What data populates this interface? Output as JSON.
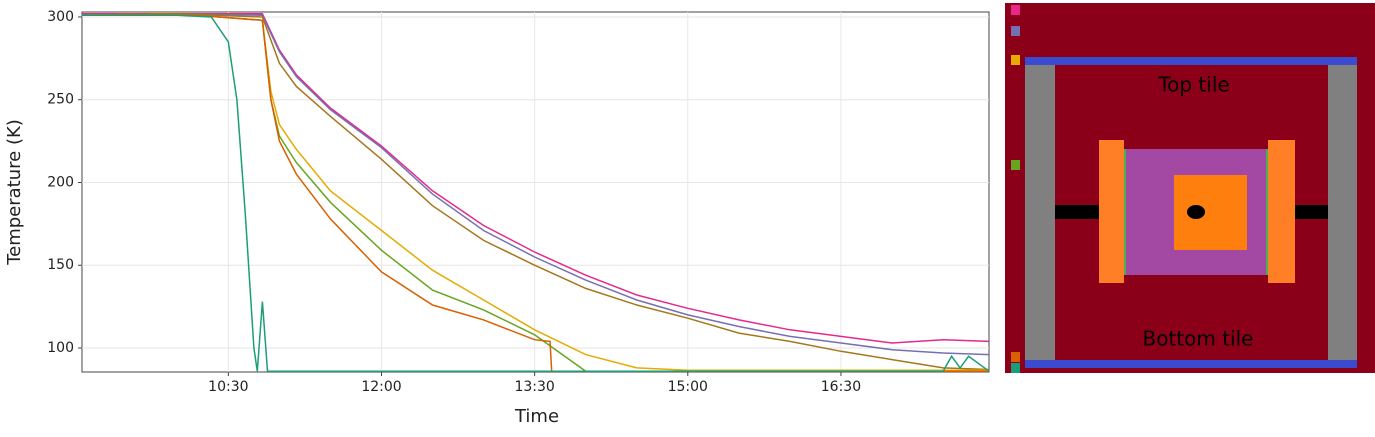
{
  "chart_data": {
    "type": "line",
    "x_label": "Time",
    "y_label": "Temperature (K)",
    "xlim": [
      544,
      1077
    ],
    "ylim": [
      85.5,
      303
    ],
    "xticks": [
      {
        "value": 630,
        "label": "10:30"
      },
      {
        "value": 720,
        "label": "12:00"
      },
      {
        "value": 810,
        "label": "13:30"
      },
      {
        "value": 900,
        "label": "15:00"
      },
      {
        "value": 990,
        "label": "16:30"
      }
    ],
    "yticks": [
      100,
      150,
      200,
      250,
      300
    ],
    "grid": true,
    "series": [
      {
        "color": "#e7298a",
        "x": [
          544,
          600,
          650,
          660,
          670,
          690,
          720,
          750,
          780,
          810,
          840,
          870,
          900,
          930,
          960,
          990,
          1020,
          1050,
          1077
        ],
        "values": [
          302,
          302,
          302,
          280,
          265,
          245,
          222,
          195,
          174,
          158,
          144,
          132,
          124,
          117,
          111,
          107,
          103,
          105,
          104
        ]
      },
      {
        "color": "#7570b3",
        "x": [
          544,
          600,
          650,
          660,
          670,
          690,
          720,
          750,
          780,
          810,
          840,
          870,
          900,
          930,
          960,
          990,
          1020,
          1050,
          1077
        ],
        "values": [
          301,
          302,
          301,
          279,
          264,
          244,
          221,
          193,
          171,
          155,
          141,
          129,
          120,
          113,
          107,
          103,
          99,
          97,
          96
        ]
      },
      {
        "color": "#a6761d",
        "x": [
          544,
          600,
          650,
          660,
          670,
          690,
          720,
          750,
          780,
          810,
          840,
          870,
          900,
          930,
          960,
          990,
          1020,
          1050,
          1077
        ],
        "values": [
          301,
          302,
          300,
          272,
          258,
          240,
          214,
          186,
          165,
          150,
          136,
          126,
          118,
          109,
          104,
          98,
          93,
          88,
          87
        ]
      },
      {
        "color": "#e6ab02",
        "x": [
          544,
          600,
          650,
          655,
          660,
          670,
          690,
          720,
          750,
          780,
          810,
          840,
          870,
          900,
          960,
          1020,
          1077
        ],
        "values": [
          301,
          302,
          298,
          255,
          235,
          220,
          195,
          171,
          147,
          129,
          111,
          96,
          88,
          86.5,
          86.5,
          86.5,
          86.5
        ]
      },
      {
        "color": "#66a61e",
        "x": [
          544,
          600,
          650,
          655,
          660,
          670,
          690,
          720,
          750,
          780,
          810,
          840,
          900,
          960,
          1020,
          1077
        ],
        "values": [
          301,
          302,
          298,
          250,
          228,
          212,
          188,
          159,
          135,
          123,
          108,
          86,
          86,
          86,
          86,
          86
        ]
      },
      {
        "color": "#d95f02",
        "x": [
          544,
          600,
          650,
          655,
          660,
          670,
          690,
          720,
          750,
          780,
          810,
          819,
          820,
          900,
          960,
          1020,
          1077
        ],
        "values": [
          301,
          302,
          298,
          250,
          225,
          205,
          178,
          146,
          126,
          117,
          105,
          104,
          86,
          86,
          86,
          86,
          86
        ]
      },
      {
        "color": "#1b9e77",
        "x": [
          544,
          600,
          620,
          630,
          635,
          640,
          645,
          647,
          650,
          653,
          660,
          720,
          810,
          900,
          990,
          1050,
          1055,
          1060,
          1065,
          1077
        ],
        "values": [
          301,
          301,
          300,
          285,
          250,
          180,
          100,
          86,
          128,
          86,
          86,
          86,
          86,
          86,
          86,
          86,
          95,
          88,
          95,
          86
        ]
      }
    ]
  },
  "diagram": {
    "top_label": "Top tile",
    "bottom_label": "Bottom tile"
  }
}
